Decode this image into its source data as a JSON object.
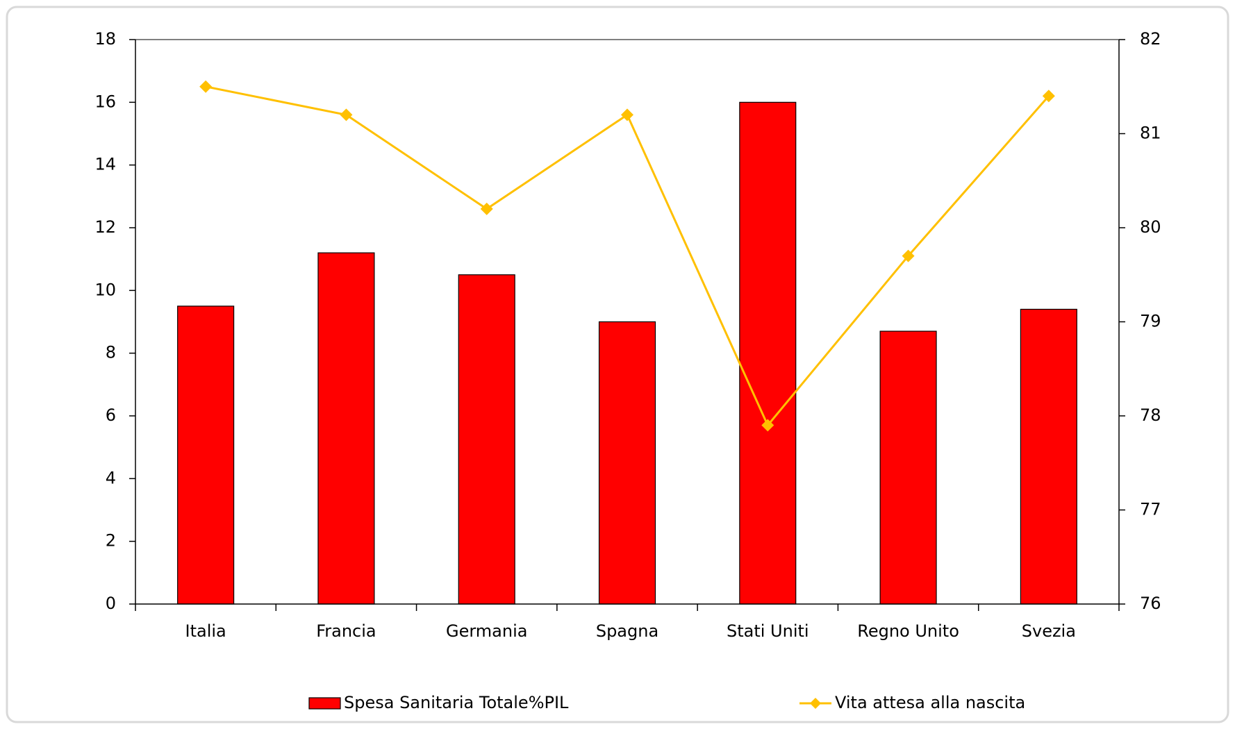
{
  "chart_data": {
    "type": "bar-line",
    "categories": [
      "Italia",
      "Francia",
      "Germania",
      "Spagna",
      "Stati Uniti",
      "Regno Unito",
      "Svezia"
    ],
    "series": [
      {
        "name": "Spesa Sanitaria Totale%PIL",
        "color": "#ff0000",
        "type": "bar",
        "values": [
          9.5,
          11.2,
          10.5,
          9.0,
          16.0,
          8.7,
          9.4
        ]
      },
      {
        "name": "Vita attesa alla nascita",
        "color": "#ffc000",
        "type": "line",
        "axis": "y2",
        "values": [
          81.5,
          81.2,
          80.2,
          81.2,
          77.9,
          79.7,
          81.4
        ]
      }
    ],
    "ylim": [
      0,
      18
    ],
    "yticks": [
      0,
      2,
      4,
      6,
      8,
      10,
      12,
      14,
      16,
      18
    ],
    "y2lim": [
      76,
      82
    ],
    "y2ticks": [
      76,
      77,
      78,
      79,
      80,
      81,
      82
    ],
    "legend": "bottom"
  }
}
